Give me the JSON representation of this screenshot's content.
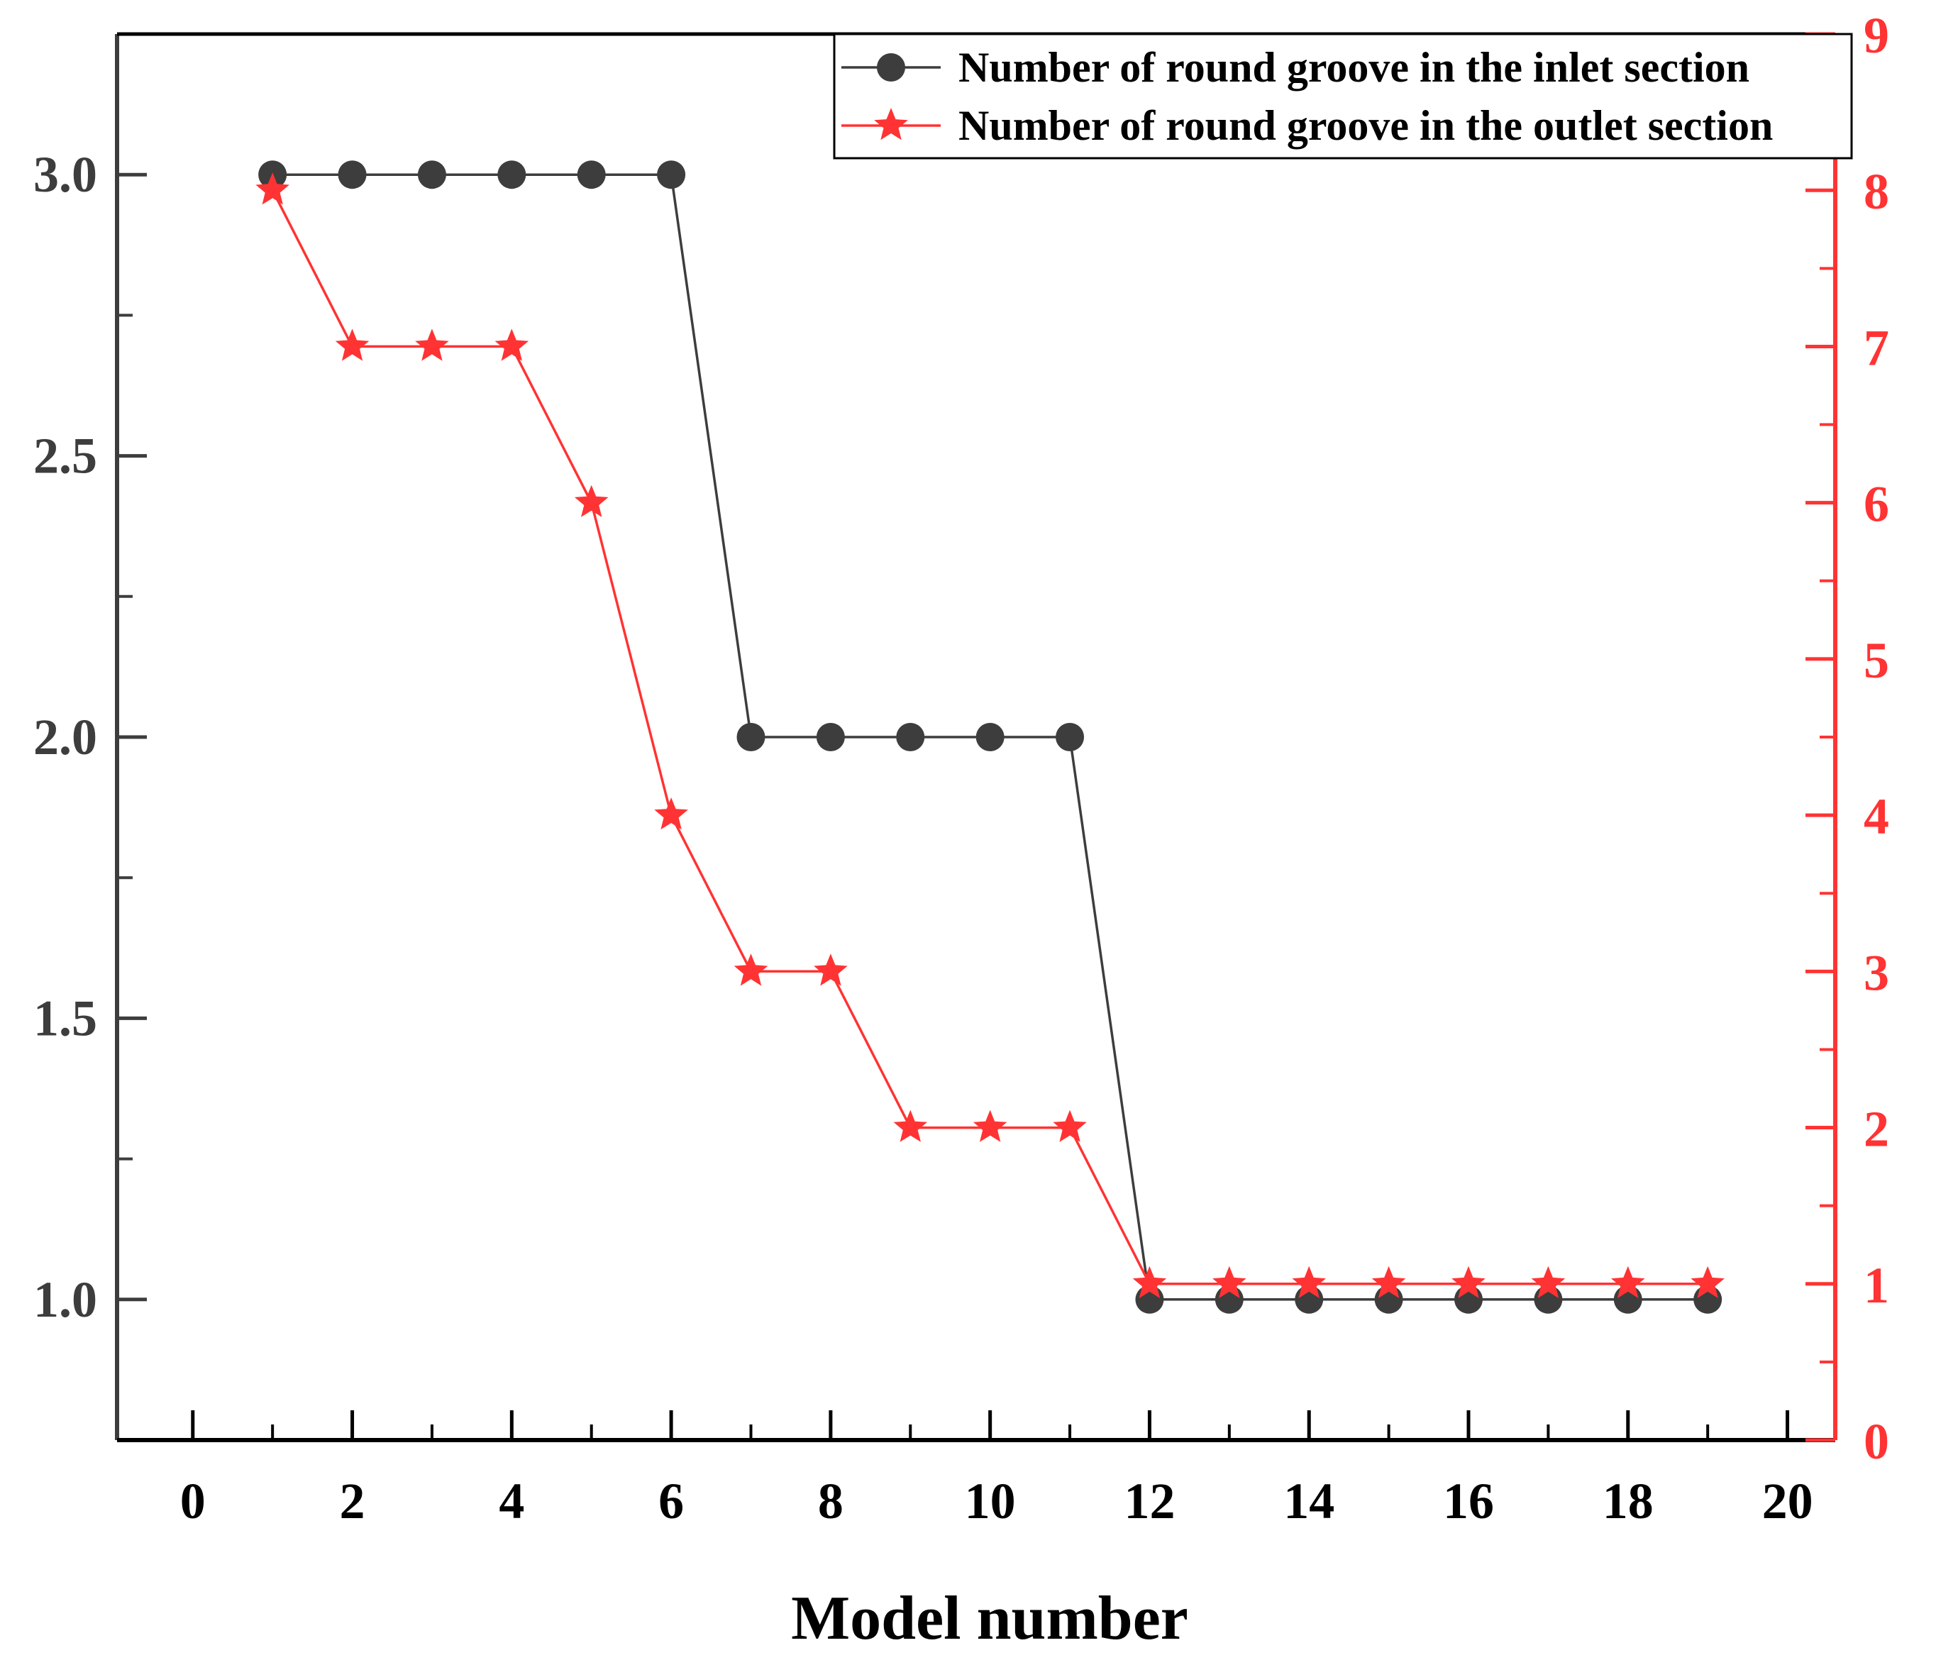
{
  "chart_data": {
    "type": "line",
    "title": "",
    "xlabel": "Model number",
    "ylabel_left": "",
    "ylabel_right": "",
    "xlim": [
      -0.95,
      20.6
    ],
    "ylim_left": [
      0.75,
      3.25
    ],
    "ylim_right": [
      0,
      9
    ],
    "x_ticks": [
      0,
      2,
      4,
      6,
      8,
      10,
      12,
      14,
      16,
      18,
      20
    ],
    "x_tick_labels": [
      "0",
      "2",
      "4",
      "6",
      "8",
      "10",
      "12",
      "14",
      "16",
      "18",
      "20"
    ],
    "y_left_ticks": [
      1.0,
      1.5,
      2.0,
      2.5,
      3.0
    ],
    "y_left_tick_labels": [
      "1.0",
      "1.5",
      "2.0",
      "2.5",
      "3.0"
    ],
    "y_right_ticks": [
      0,
      1,
      2,
      3,
      4,
      5,
      6,
      7,
      8,
      9
    ],
    "y_right_tick_labels": [
      "0",
      "1",
      "2",
      "3",
      "4",
      "5",
      "6",
      "7",
      "8",
      "9"
    ],
    "legend_position": "top-right",
    "grid": false,
    "series": [
      {
        "name": "Number of round groove in the inlet section",
        "axis": "left",
        "color": "#3d3d3d",
        "marker": "circle",
        "x": [
          1,
          2,
          3,
          4,
          5,
          6,
          7,
          8,
          9,
          10,
          11,
          12,
          13,
          14,
          15,
          16,
          17,
          18,
          19
        ],
        "values": [
          3,
          3,
          3,
          3,
          3,
          3,
          2,
          2,
          2,
          2,
          2,
          1,
          1,
          1,
          1,
          1,
          1,
          1,
          1
        ]
      },
      {
        "name": "Number of round groove in the outlet section",
        "axis": "right",
        "color": "#ff3333",
        "marker": "star",
        "x": [
          1,
          2,
          3,
          4,
          5,
          6,
          7,
          8,
          9,
          10,
          11,
          12,
          13,
          14,
          15,
          16,
          17,
          18,
          19
        ],
        "values": [
          8,
          7,
          7,
          7,
          6,
          4,
          3,
          3,
          2,
          2,
          2,
          1,
          1,
          1,
          1,
          1,
          1,
          1,
          1
        ]
      }
    ]
  }
}
